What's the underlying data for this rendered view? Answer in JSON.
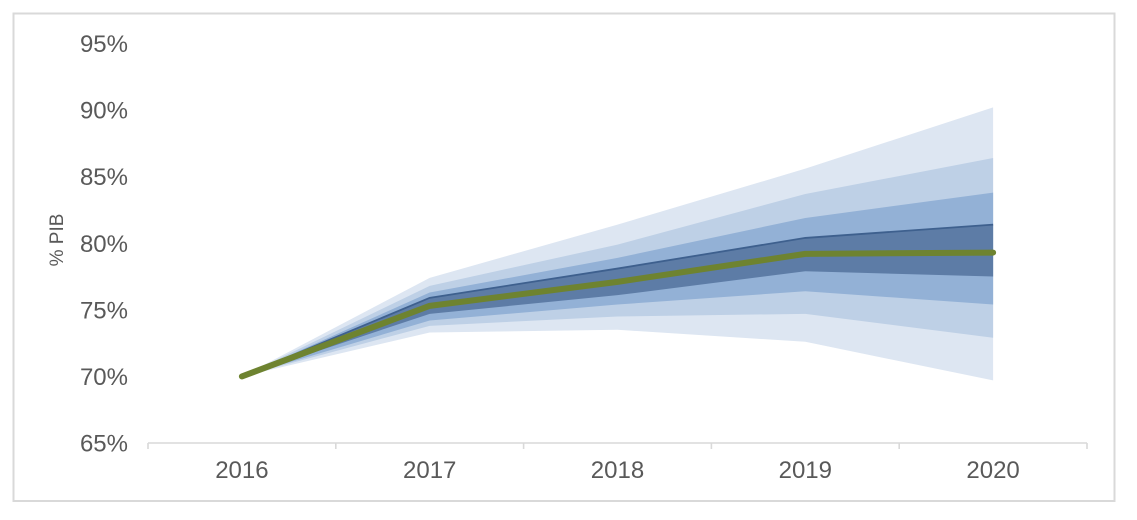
{
  "chart_data": {
    "type": "area",
    "subtype": "fan_chart",
    "title": "",
    "xlabel": "",
    "ylabel": "% PIB",
    "categories": [
      "2016",
      "2017",
      "2018",
      "2019",
      "2020"
    ],
    "y_ticks": [
      {
        "value": 95,
        "label": "95%"
      },
      {
        "value": 90,
        "label": "90%"
      },
      {
        "value": 85,
        "label": "85%"
      },
      {
        "value": 80,
        "label": "80%"
      },
      {
        "value": 75,
        "label": "75%"
      },
      {
        "value": 70,
        "label": "70%"
      },
      {
        "value": 65,
        "label": "65%"
      }
    ],
    "ylim": [
      65,
      95
    ],
    "grid": false,
    "legend": "none",
    "series": [
      {
        "name": "central projection",
        "type": "line",
        "color": "#6e8330",
        "values": [
          70.0,
          75.3,
          77.1,
          79.2,
          79.3
        ]
      }
    ],
    "bands": [
      {
        "name": "outer band",
        "color": "#dde6f2",
        "upper": [
          70.0,
          77.4,
          81.4,
          85.6,
          90.2
        ],
        "lower": [
          70.0,
          73.3,
          73.5,
          72.6,
          69.7
        ]
      },
      {
        "name": "second band",
        "color": "#bed0e6",
        "upper": [
          70.0,
          76.8,
          79.9,
          83.7,
          86.4
        ],
        "lower": [
          70.0,
          73.8,
          74.5,
          74.7,
          72.9
        ]
      },
      {
        "name": "third band",
        "color": "#93b1d6",
        "upper": [
          70.0,
          76.3,
          78.9,
          81.9,
          83.8
        ],
        "lower": [
          70.0,
          74.2,
          75.4,
          76.4,
          75.4
        ]
      },
      {
        "name": "inner band",
        "color": "#5d7ca6",
        "upper_border_color": "#3e608e",
        "upper": [
          70.0,
          75.9,
          78.1,
          80.4,
          81.4
        ],
        "lower": [
          70.0,
          74.7,
          76.1,
          77.9,
          77.5
        ]
      }
    ]
  },
  "axis": {
    "line_color": "#d9d9d9",
    "tick_label_color": "#595959"
  },
  "frame": {
    "border_color": "#d9d9d9",
    "background": "#ffffff"
  }
}
